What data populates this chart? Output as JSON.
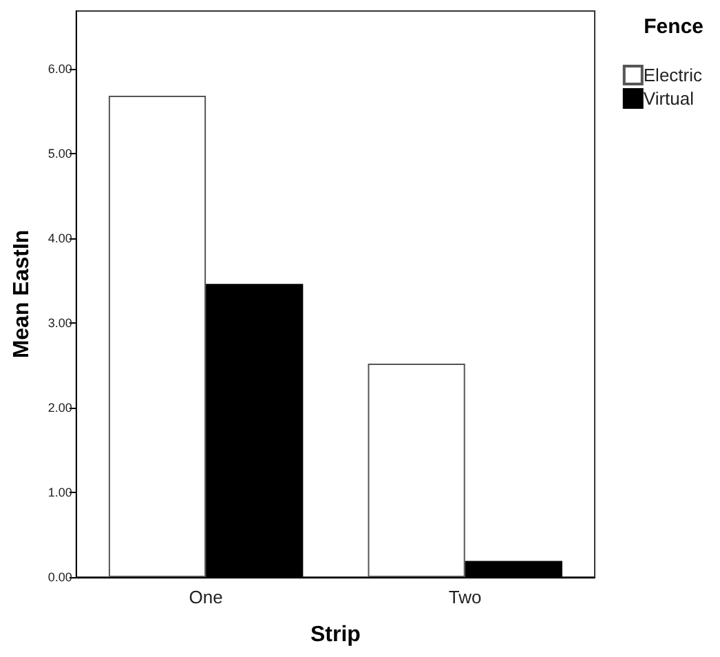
{
  "chart_data": {
    "type": "bar",
    "xlabel": "Strip",
    "ylabel": "Mean EastIn",
    "legend_title": "Fence",
    "categories": [
      "One",
      "Two"
    ],
    "series": [
      {
        "name": "Electric",
        "color": "#ffffff",
        "values": [
          5.68,
          2.52
        ]
      },
      {
        "name": "Virtual",
        "color": "#000000",
        "values": [
          3.46,
          0.19
        ]
      }
    ],
    "ylim": [
      0,
      6.68
    ],
    "yticks": [
      {
        "value": 0,
        "label": "0.00"
      },
      {
        "value": 1,
        "label": "1.00"
      },
      {
        "value": 2,
        "label": "2.00"
      },
      {
        "value": 3,
        "label": "3.00"
      },
      {
        "value": 4,
        "label": "4.00"
      },
      {
        "value": 5,
        "label": "5.00"
      },
      {
        "value": 6,
        "label": "6.00"
      }
    ],
    "grid": false,
    "legend": "top right"
  }
}
